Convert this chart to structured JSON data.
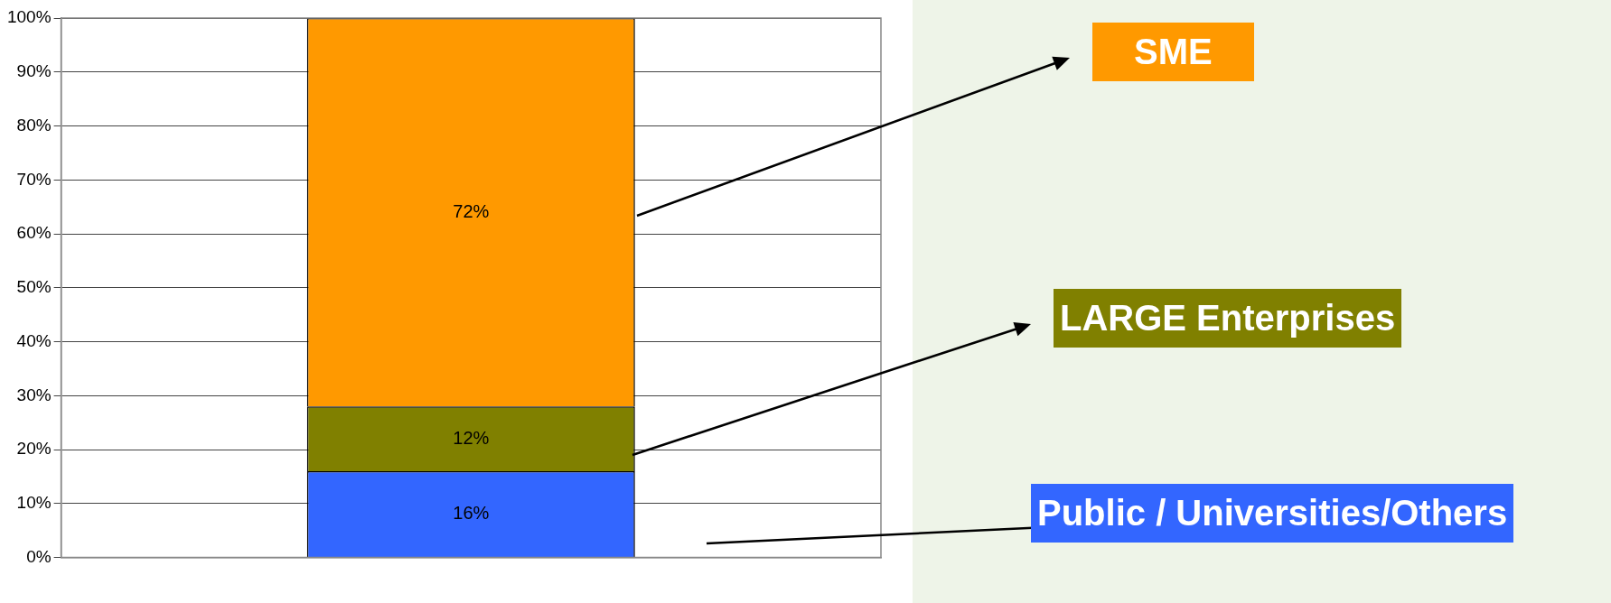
{
  "chart_data": {
    "type": "bar",
    "stacked": true,
    "categories": [
      null
    ],
    "series": [
      {
        "name": "Public / Universities/Others",
        "color": "#3366ff",
        "values": [
          16
        ],
        "value_labels": [
          "16%"
        ]
      },
      {
        "name": "LARGE Enterprises",
        "color": "#808000",
        "values": [
          12
        ],
        "value_labels": [
          "12%"
        ]
      },
      {
        "name": "SME",
        "color": "#ff9900",
        "values": [
          72
        ],
        "value_labels": [
          "72%"
        ]
      }
    ],
    "ylim": [
      0,
      100
    ],
    "yticks": [
      {
        "value": 0,
        "label": "0%"
      },
      {
        "value": 10,
        "label": "10%"
      },
      {
        "value": 20,
        "label": "20%"
      },
      {
        "value": 30,
        "label": "30%"
      },
      {
        "value": 40,
        "label": "40%"
      },
      {
        "value": 50,
        "label": "50%"
      },
      {
        "value": 60,
        "label": "60%"
      },
      {
        "value": 70,
        "label": "70%"
      },
      {
        "value": 80,
        "label": "80%"
      },
      {
        "value": 90,
        "label": "90%"
      },
      {
        "value": 100,
        "label": "100%"
      }
    ],
    "grid": "y",
    "legend": "right"
  }
}
